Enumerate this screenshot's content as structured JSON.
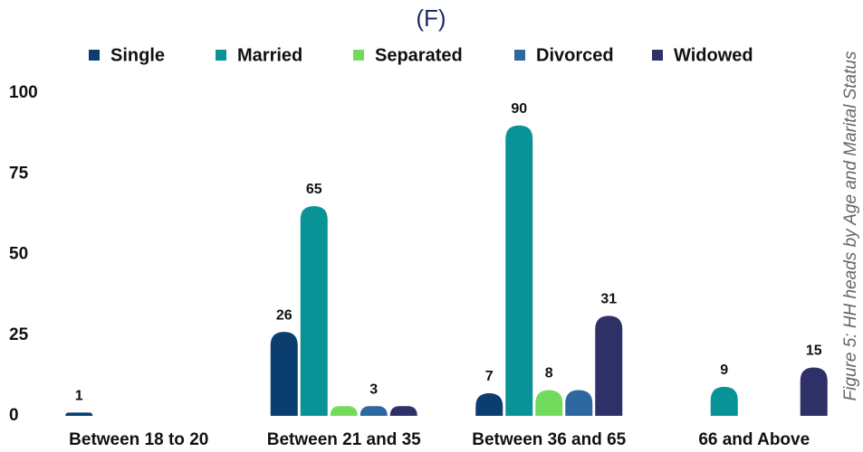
{
  "chart_data": {
    "type": "bar",
    "title": "(F)",
    "caption": "Figure 5: HH heads by Age and Marital Status",
    "categories": [
      "Between 18 to 20",
      "Between 21 and 35",
      "Between 36 and 65",
      "66 and Above"
    ],
    "series": [
      {
        "name": "Single",
        "color": "#0b3d6e",
        "values": [
          1,
          26,
          7,
          null
        ],
        "value_labels": [
          "1",
          "26",
          "7",
          null
        ]
      },
      {
        "name": "Married",
        "color": "#0a9396",
        "values": [
          null,
          65,
          90,
          9
        ],
        "value_labels": [
          null,
          "65",
          "90",
          "9"
        ]
      },
      {
        "name": "Separated",
        "color": "#72db5c",
        "values": [
          null,
          3,
          8,
          null
        ],
        "value_labels": [
          null,
          null,
          "8",
          null
        ]
      },
      {
        "name": "Divorced",
        "color": "#2f67a0",
        "values": [
          null,
          3,
          8,
          null
        ],
        "value_labels": [
          null,
          "3",
          null,
          null
        ]
      },
      {
        "name": "Widowed",
        "color": "#2e3068",
        "values": [
          null,
          3,
          31,
          15
        ],
        "value_labels": [
          null,
          null,
          "31",
          "15"
        ]
      }
    ],
    "ylim": [
      0,
      100
    ],
    "yticks": [
      0,
      25,
      50,
      75,
      100
    ],
    "grid": false,
    "legend": "top"
  }
}
